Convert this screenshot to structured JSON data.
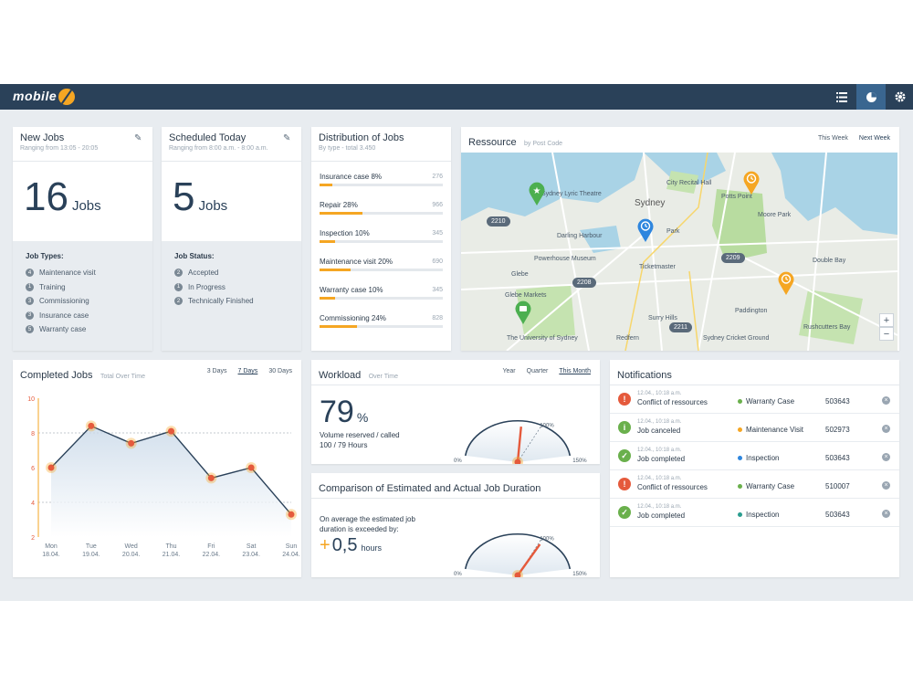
{
  "app": {
    "logo_text": "mobile"
  },
  "topbar": {
    "list_icon": "list-icon",
    "chart_icon": "pie-chart-icon",
    "settings_icon": "gear-icon"
  },
  "new_jobs": {
    "title": "New Jobs",
    "subtitle": "Ranging from 13:05 - 20:05",
    "value": "16",
    "unit": "Jobs",
    "panel_label": "Job Types:",
    "items": [
      {
        "n": "4",
        "label": "Maintenance visit"
      },
      {
        "n": "1",
        "label": "Training"
      },
      {
        "n": "3",
        "label": "Commissioning"
      },
      {
        "n": "3",
        "label": "Insurance case"
      },
      {
        "n": "5",
        "label": "Warranty case"
      }
    ]
  },
  "scheduled": {
    "title": "Scheduled Today",
    "subtitle": "Ranging from 8:00 a.m. - 8:00 a.m.",
    "value": "5",
    "unit": "Jobs",
    "panel_label": "Job Status:",
    "items": [
      {
        "n": "2",
        "label": "Accepted"
      },
      {
        "n": "1",
        "label": "In Progress"
      },
      {
        "n": "2",
        "label": "Technically Finished"
      }
    ]
  },
  "distribution": {
    "title": "Distribution of Jobs",
    "subtitle": "By type - total 3.450",
    "rows": [
      {
        "label": "Insurance case 8%",
        "count": "276",
        "pct": 8
      },
      {
        "label": "Repair 28%",
        "count": "966",
        "pct": 28
      },
      {
        "label": "Inspection 10%",
        "count": "345",
        "pct": 10
      },
      {
        "label": "Maintenance visit 20%",
        "count": "690",
        "pct": 20
      },
      {
        "label": "Warranty case 10%",
        "count": "345",
        "pct": 10
      },
      {
        "label": "Commissioning 24%",
        "count": "828",
        "pct": 24
      }
    ]
  },
  "ressource": {
    "title": "Ressource",
    "subtitle": "by Post Code",
    "tab_this": "This Week",
    "tab_next": "Next Week",
    "map_labels": {
      "sydney": "Sydney",
      "city_recital": "City Recital Hall",
      "sydney_theatre": "Sydney Lyric Theatre",
      "darling": "Darling Harbour",
      "powerhouse": "Powerhouse Museum",
      "ticketmaster": "Ticketmaster",
      "glebe": "Glebe",
      "markets": "Glebe Markets",
      "potts": "Potts Point",
      "double_bay": "Double Bay",
      "paddington": "Paddington",
      "uni": "The University of Sydney",
      "surry": "Surry Hills",
      "park": "Park",
      "moore": "Moore Park",
      "redfern": "Redfern",
      "rushcutters": "Rushcutters Bay",
      "stadium": "Sydney Cricket Ground"
    },
    "tags": [
      "2210",
      "2209",
      "2208",
      "2211"
    ],
    "zoom_in": "+",
    "zoom_out": "−"
  },
  "completed": {
    "title": "Completed Jobs",
    "subtitle": "Total Over Time",
    "tabs": [
      "3 Days",
      "7 Days",
      "30 Days"
    ]
  },
  "chart_data": {
    "type": "area",
    "title": "Completed Jobs",
    "subtitle": "Total Over Time",
    "categories": [
      "Mon 18.04.",
      "Tue 19.04.",
      "Wed 20.04.",
      "Thu 21.04.",
      "Fri 22.04.",
      "Sat 23.04.",
      "Sun 24.04."
    ],
    "cat_day": [
      "Mon",
      "Tue",
      "Wed",
      "Thu",
      "Fri",
      "Sat",
      "Sun"
    ],
    "cat_date": [
      "18.04.",
      "19.04.",
      "20.04.",
      "21.04.",
      "22.04.",
      "23.04.",
      "24.04."
    ],
    "values": [
      6,
      8.4,
      7.4,
      8.1,
      5.4,
      6,
      3.3
    ],
    "yticks": [
      2,
      4,
      6,
      8,
      10
    ],
    "ylim": [
      2,
      10
    ],
    "ref_lines": [
      8,
      4
    ]
  },
  "workload": {
    "title": "Workload",
    "subtitle": "Over Time",
    "tabs": [
      "Year",
      "Quarter",
      "This Month"
    ],
    "value": "79",
    "unit": "%",
    "desc1": "Volume reserved / called",
    "desc2": "100 / 79 Hours",
    "gauge_min": "0%",
    "gauge_mid": "100%",
    "gauge_max": "150%",
    "level": 79
  },
  "comparison": {
    "title": "Comparison of Estimated and Actual Job Duration",
    "desc1": "On average the estimated job",
    "desc2": "duration is exceeded by:",
    "sign": "+",
    "value": "0,5",
    "unit": "hours",
    "gauge_min": "0%",
    "gauge_mid": "100%",
    "gauge_max": "150%",
    "level": 102
  },
  "notifications": {
    "title": "Notifications",
    "items": [
      {
        "type": "alert",
        "time": "12.04., 10:18 a.m.",
        "text": "Conflict of ressources",
        "category": "Warranty Case",
        "color": "#6ab04c",
        "num": "503643"
      },
      {
        "type": "info",
        "time": "12.04., 10:18 a.m.",
        "text": "Job canceled",
        "category": "Maintenance Visit",
        "color": "#f5a623",
        "num": "502973"
      },
      {
        "type": "ok",
        "time": "12.04., 10:18 a.m.",
        "text": "Job completed",
        "category": "Inspection",
        "color": "#2e86de",
        "num": "503643"
      },
      {
        "type": "alert",
        "time": "12.04., 10:18 a.m.",
        "text": "Conflict of ressources",
        "category": "Warranty Case",
        "color": "#6ab04c",
        "num": "510007"
      },
      {
        "type": "ok",
        "time": "12.04., 10:18 a.m.",
        "text": "Job completed",
        "category": "Inspection",
        "color": "#2a9d8f",
        "num": "503643"
      }
    ]
  }
}
